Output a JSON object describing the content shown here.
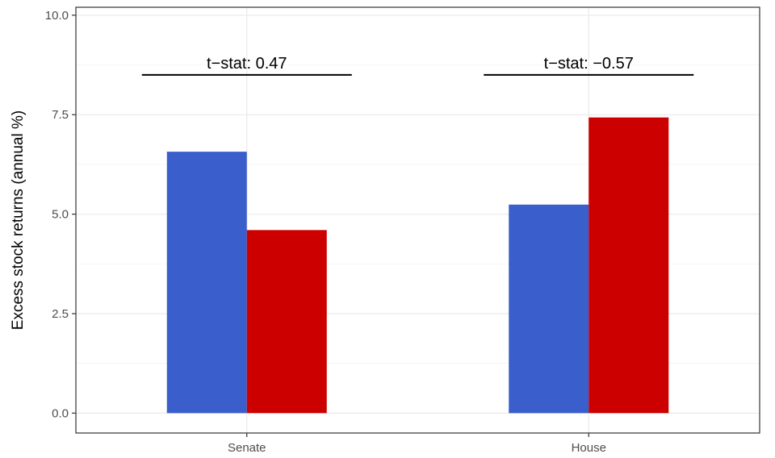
{
  "chart_data": {
    "type": "bar",
    "categories": [
      "Senate",
      "House"
    ],
    "series": [
      {
        "values": [
          6.57,
          5.24
        ],
        "color": "#3a5fcd"
      },
      {
        "values": [
          4.6,
          7.43
        ],
        "color": "#cd0000"
      }
    ],
    "ylabel": "Excess stock returns (annual %)",
    "xlabel": "",
    "title": "",
    "ylim": [
      -0.5,
      10.2
    ],
    "yticks": [
      0.0,
      2.5,
      5.0,
      7.5,
      10.0
    ],
    "ytick_labels": [
      "0.0",
      "2.5",
      "5.0",
      "7.5",
      "10.0"
    ],
    "grid": true,
    "legend": "none",
    "annotations": [
      {
        "category": "Senate",
        "text": "t−stat: 0.47",
        "y": 8.5
      },
      {
        "category": "House",
        "text": "t−stat: −0.57",
        "y": 8.5
      }
    ]
  }
}
